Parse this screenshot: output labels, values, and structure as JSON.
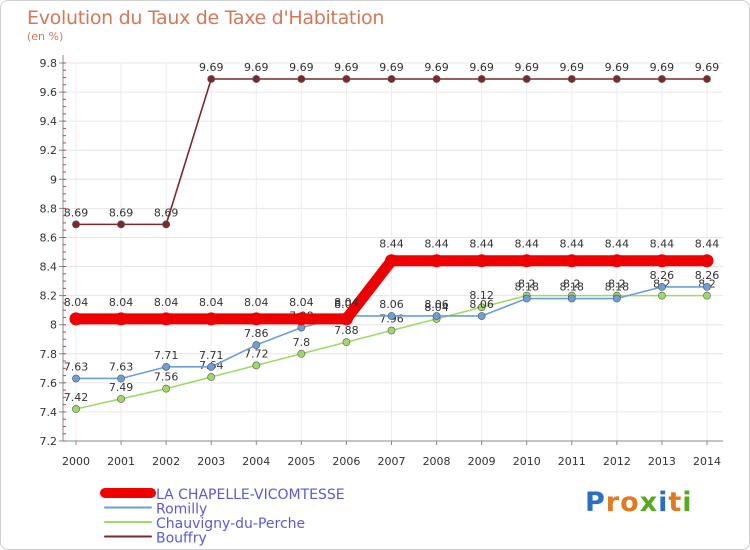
{
  "chart_data": {
    "type": "line",
    "title": "Evolution du Taux de Taxe d'Habitation",
    "ylabel": "(en %)",
    "xlabel": "",
    "ylim": [
      7.2,
      9.8
    ],
    "yticks": [
      "7.2",
      "7.4",
      "7.6",
      "7.8",
      "8",
      "8.2",
      "8.4",
      "8.6",
      "8.8",
      "9",
      "9.2",
      "9.4",
      "9.6",
      "9.8"
    ],
    "categories": [
      "2000",
      "2001",
      "2002",
      "2003",
      "2004",
      "2005",
      "2006",
      "2007",
      "2008",
      "2009",
      "2010",
      "2011",
      "2012",
      "2013",
      "2014"
    ],
    "series": [
      {
        "name": "LA CHAPELLE-VICOMTESSE",
        "color": "#ee0000",
        "labels_pos": "above",
        "values": [
          8.04,
          8.04,
          8.04,
          8.04,
          8.04,
          8.04,
          8.04,
          8.44,
          8.44,
          8.44,
          8.44,
          8.44,
          8.44,
          8.44,
          8.44
        ],
        "labels": [
          "8.04",
          "8.04",
          "8.04",
          "8.04",
          "8.04",
          "8.04",
          "8.04",
          "8.44",
          "8.44",
          "8.44",
          "8.44",
          "8.44",
          "8.44",
          "8.44",
          "8.44"
        ]
      },
      {
        "name": "Romilly",
        "color": "#6a9fd8",
        "labels_pos": "above",
        "values": [
          7.63,
          7.63,
          7.71,
          7.71,
          7.86,
          7.98,
          8.06,
          8.06,
          8.06,
          8.06,
          8.18,
          8.18,
          8.18,
          8.26,
          8.26
        ],
        "labels": [
          "7.63",
          "7.63",
          "7.71",
          "7.71",
          "7.86",
          "7.98",
          "8.06",
          "8.06",
          "8.06",
          "8.06",
          "8.18",
          "8.18",
          "8.18",
          "8.26",
          "8.26"
        ]
      },
      {
        "name": "Chauvigny-du-Perche",
        "color": "#9fd86a",
        "labels_pos": "above",
        "values": [
          7.42,
          7.49,
          7.56,
          7.64,
          7.72,
          7.8,
          7.88,
          7.96,
          8.04,
          8.12,
          8.2,
          8.2,
          8.2,
          8.2,
          8.2
        ],
        "labels": [
          "7.42",
          "7.49",
          "7.56",
          "7.64",
          "7.72",
          "7.8",
          "7.88",
          "7.96",
          "8.04",
          "8.12",
          "8.2",
          "8.2",
          "8.2",
          "8.2",
          "8.2"
        ]
      },
      {
        "name": "Bouffry",
        "color": "#7a2a2a",
        "labels_pos": "above",
        "values": [
          8.69,
          8.69,
          8.69,
          9.69,
          9.69,
          9.69,
          9.69,
          9.69,
          9.69,
          9.69,
          9.69,
          9.69,
          9.69,
          9.69,
          9.69
        ],
        "labels": [
          "8.69",
          "8.69",
          "8.69",
          "9.69",
          "9.69",
          "9.69",
          "9.69",
          "9.69",
          "9.69",
          "9.69",
          "9.69",
          "9.69",
          "9.69",
          "9.69",
          "9.69"
        ]
      }
    ]
  },
  "legend": {
    "items": [
      "LA CHAPELLE-VICOMTESSE",
      "Romilly",
      "Chauvigny-du-Perche",
      "Bouffry"
    ],
    "colors": [
      "#ee0000",
      "#6a9fd8",
      "#9fd86a",
      "#7a2a2a"
    ]
  },
  "logo": {
    "letters": [
      "P",
      "r",
      "o",
      "x",
      "i",
      "t",
      "i"
    ],
    "colors": [
      "#2a6fc0",
      "#e07a20",
      "#e07a20",
      "#5aa820",
      "#2a6fc0",
      "#e07a20",
      "#5aa820"
    ]
  }
}
